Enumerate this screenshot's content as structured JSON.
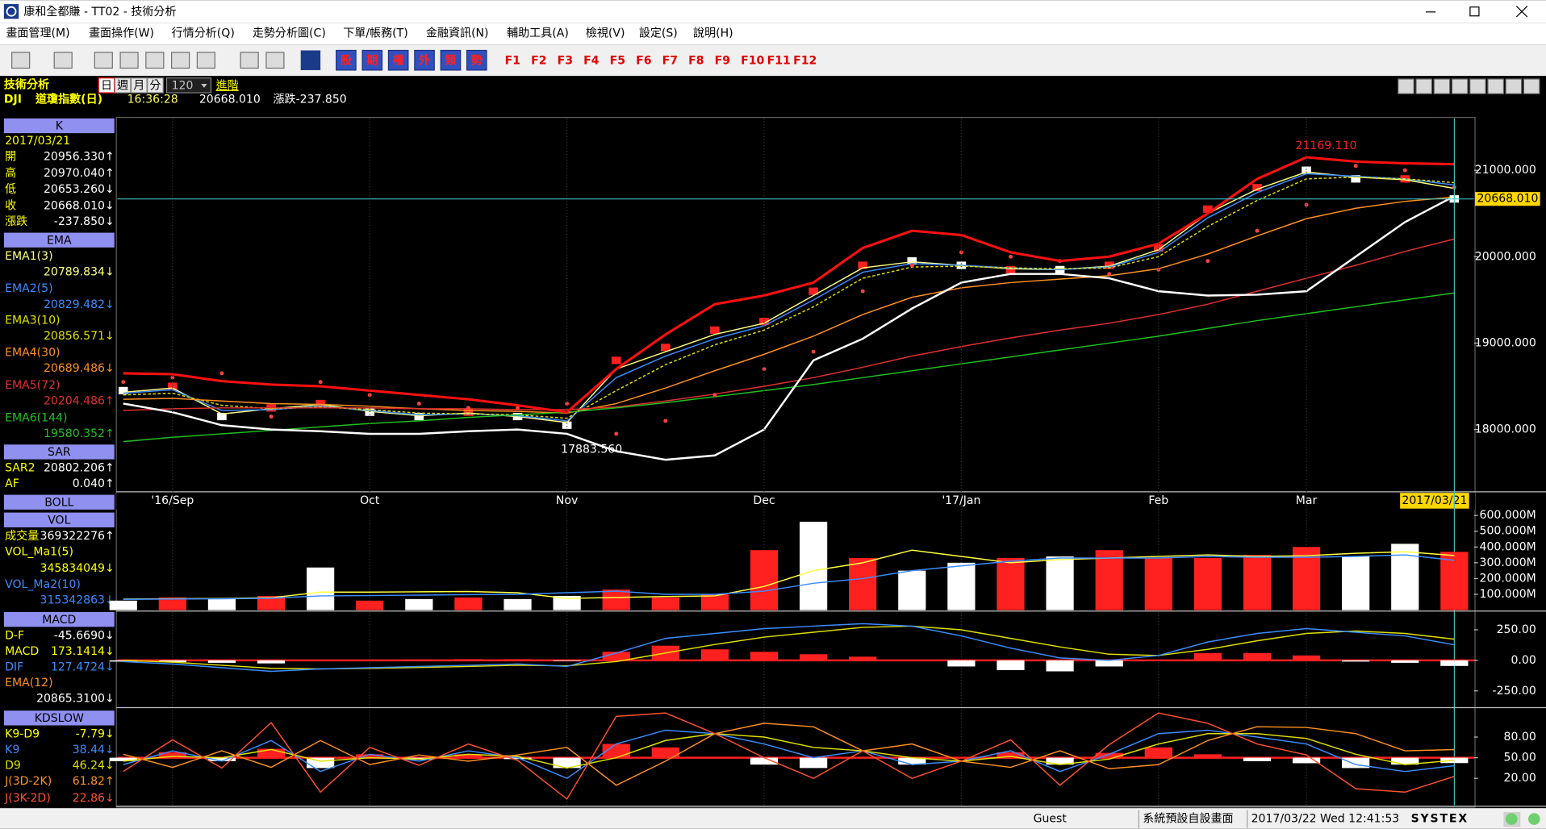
{
  "window": {
    "title": "康和全都賺 - TT02 - 技術分析",
    "menu": [
      "畫面管理(M)",
      "畫面操作(W)",
      "行情分析(Q)",
      "走勢分析圖(C)",
      "下單/帳務(T)",
      "金融資訊(N)",
      "輔助工具(A)",
      "檢視(V)",
      "設定(S)",
      "說明(H)"
    ]
  },
  "toolbar": {
    "buttons": [
      "股",
      "期",
      "權",
      "外",
      "類",
      "勢"
    ],
    "function_keys": [
      "F1",
      "F2",
      "F3",
      "F4",
      "F5",
      "F6",
      "F7",
      "F8",
      "F9",
      "F10",
      "F11",
      "F12"
    ]
  },
  "header": {
    "title": "技術分析",
    "periods": [
      "日",
      "週",
      "月",
      "分"
    ],
    "count": "120",
    "advanced": "進階",
    "symbol": "DJI",
    "name": "道瓊指數(日)",
    "time": "16:36:28",
    "price": "20668.010",
    "change": "漲跌-237.850"
  },
  "side_panel": {
    "headers": [
      "K",
      "EMA",
      "SAR",
      "VOL",
      "MACD",
      "KDSLOW"
    ],
    "date": "2017/03/21",
    "ohlc": [
      {
        "label": "開",
        "value": "20956.330↑"
      },
      {
        "label": "高",
        "value": "20970.040↑"
      },
      {
        "label": "低",
        "value": "20653.260↓"
      },
      {
        "label": "收",
        "value": "20668.010↓"
      },
      {
        "label": "漲跌",
        "value": "-237.850↓"
      }
    ],
    "ema_values": [
      "20789.834↓",
      "20829.482↓",
      "20856.571↓",
      "20689.486↓",
      "20204.486↑",
      "19580.352↑"
    ],
    "sar_value": "20802.206↑",
    "af": {
      "label": "AF",
      "value": "0.040↑"
    },
    "vol_values": [
      "369322276↑",
      "345834049↓",
      "315342863↓"
    ],
    "macd_values": [
      "-45.6690↓",
      "173.1414↓",
      "127.4724↓"
    ],
    "macd_ema": {
      "label": "EMA(12)",
      "value": "20865.3100↓"
    },
    "kd_values": [
      "-7.79↓",
      "38.44↓",
      "46.24↓",
      "61.82↑",
      "22.86↓"
    ]
  },
  "chart_data": [
    {
      "type": "line",
      "categories": [
        null,
        "'16/Sep",
        null,
        null,
        null,
        "Oct",
        null,
        null,
        null,
        "Nov",
        null,
        null,
        null,
        "Dec",
        null,
        null,
        null,
        "'17/Jan",
        null,
        null,
        null,
        "Feb",
        null,
        null,
        "Mar",
        null,
        null,
        "2017/03/21"
      ],
      "ylim": [
        17290,
        21600
      ],
      "yticks": [
        {
          "value": 18000,
          "label": "18000.000"
        },
        {
          "value": 19000,
          "label": "19000.000"
        },
        {
          "value": 20000,
          "label": "20000.000"
        },
        {
          "value": 21000,
          "label": "21000.000"
        }
      ],
      "annotations": [
        {
          "text": "21169.110",
          "value": 21169.11
        },
        {
          "text": "17883.560",
          "value": 17883.56
        }
      ],
      "cursor": {
        "value": 20668.01,
        "label": "20668.010"
      },
      "series": [
        {
          "style": "candle",
          "colors": [
            "#ffffff",
            "#ff2020",
            "#ffffff",
            "#ff2020",
            "#ff2020",
            "#ffffff",
            "#ffffff",
            "#ff2020",
            "#ffffff",
            "#ffffff",
            "#ff2020",
            "#ff2020",
            "#ff2020",
            "#ff2020",
            "#ff2020",
            "#ff2020",
            "#ffffff",
            "#ffffff",
            "#ff2020",
            "#ffffff",
            "#ff2020",
            "#ff2020",
            "#ff2020",
            "#ff2020",
            "#ffffff",
            "#ffffff",
            "#ff2020",
            "#ffffff"
          ],
          "values": [
            18450,
            18500,
            18150,
            18250,
            18300,
            18200,
            18150,
            18200,
            18150,
            18050,
            18800,
            18950,
            19150,
            19250,
            19600,
            19900,
            19950,
            19900,
            19850,
            19850,
            19900,
            20100,
            20550,
            20800,
            21000,
            20900,
            20900,
            20668.01
          ]
        },
        {
          "name": "EMA1(3)",
          "color": "#ffff80",
          "style": "line",
          "values": [
            18430,
            18480,
            18180,
            18240,
            18290,
            18210,
            18160,
            18190,
            18150,
            18080,
            18700,
            18900,
            19100,
            19230,
            19550,
            19870,
            19940,
            19900,
            19860,
            19850,
            19890,
            20080,
            20500,
            20780,
            20980,
            20920,
            20890,
            20789.834
          ]
        },
        {
          "name": "EMA2(5)",
          "color": "#3c8cff",
          "style": "line",
          "values": [
            18420,
            18460,
            18220,
            18230,
            18270,
            18220,
            18170,
            18180,
            18160,
            18100,
            18600,
            18850,
            19050,
            19200,
            19500,
            19820,
            19920,
            19900,
            19870,
            19850,
            19880,
            20050,
            20450,
            20740,
            20960,
            20930,
            20900,
            20829.482
          ]
        },
        {
          "name": "EMA3(10)",
          "color": "#e0e000",
          "style": "dash",
          "values": [
            18400,
            18420,
            18280,
            18240,
            18260,
            18230,
            18190,
            18180,
            18170,
            18130,
            18450,
            18750,
            18980,
            19150,
            19420,
            19750,
            19880,
            19890,
            19870,
            19860,
            19870,
            20000,
            20350,
            20650,
            20900,
            20920,
            20900,
            20856.571
          ]
        },
        {
          "name": "EMA4(30)",
          "color": "#ff9020",
          "style": "line",
          "values": [
            18350,
            18360,
            18330,
            18300,
            18290,
            18270,
            18240,
            18220,
            18210,
            18190,
            18300,
            18480,
            18680,
            18870,
            19080,
            19330,
            19530,
            19640,
            19700,
            19740,
            19780,
            19860,
            20030,
            20240,
            20440,
            20560,
            20640,
            20689.486
          ]
        },
        {
          "name": "EMA5(72)",
          "color": "#e03030",
          "style": "line",
          "values": [
            18220,
            18240,
            18250,
            18250,
            18250,
            18250,
            18240,
            18240,
            18230,
            18230,
            18260,
            18330,
            18410,
            18500,
            18600,
            18720,
            18850,
            18960,
            19060,
            19150,
            19230,
            19330,
            19450,
            19600,
            19750,
            19900,
            20060,
            20204.486
          ]
        },
        {
          "name": "EMA6(144)",
          "color": "#20c020",
          "style": "line",
          "values": [
            17860,
            17910,
            17950,
            17990,
            18030,
            18070,
            18100,
            18140,
            18170,
            18200,
            18250,
            18310,
            18380,
            18450,
            18520,
            18600,
            18680,
            18760,
            18840,
            18920,
            19000,
            19080,
            19170,
            19260,
            19340,
            19420,
            19500,
            19580.352
          ]
        },
        {
          "name": "SAR2",
          "color": "#ff4040",
          "style": "dots",
          "values": [
            18550,
            18600,
            18650,
            18150,
            18550,
            18400,
            18300,
            18250,
            18250,
            18300,
            17950,
            18100,
            18400,
            18700,
            18900,
            19600,
            19900,
            20050,
            20000,
            19950,
            19800,
            19850,
            19950,
            20300,
            20600,
            21050,
            21000,
            20802.206
          ]
        },
        {
          "name": "BOLL",
          "color": "#ff1010",
          "lower_color": "#ffffff",
          "style": "band",
          "values": [
            18650,
            18640,
            18560,
            18520,
            18500,
            18450,
            18400,
            18350,
            18280,
            18200,
            18700,
            19100,
            19450,
            19550,
            19700,
            20100,
            20300,
            20250,
            20050,
            19950,
            20000,
            20150,
            20500,
            20900,
            21150,
            21100,
            21080,
            21070
          ],
          "lower_values": [
            18300,
            18200,
            18050,
            18000,
            17980,
            17950,
            17950,
            17980,
            18000,
            17950,
            17750,
            17650,
            17700,
            18000,
            18800,
            19050,
            19400,
            19700,
            19800,
            19800,
            19750,
            19600,
            19550,
            19560,
            19600,
            20000,
            20400,
            20700
          ]
        }
      ]
    },
    {
      "type": "bar",
      "ylim": [
        0,
        612
      ],
      "yticks": [
        {
          "value": 100,
          "label": "100.000M"
        },
        {
          "value": 200,
          "label": "200.000M"
        },
        {
          "value": 300,
          "label": "300.000M"
        },
        {
          "value": 400,
          "label": "400.000M"
        },
        {
          "value": 500,
          "label": "500.000M"
        },
        {
          "value": 600,
          "label": "600.000M"
        }
      ],
      "series": [
        {
          "name": "成交量",
          "style": "bar",
          "colors": [
            "#ffffff",
            "#ff2020",
            "#ffffff",
            "#ff2020",
            "#ffffff",
            "#ff2020",
            "#ffffff",
            "#ff2020",
            "#ffffff",
            "#ffffff",
            "#ff2020",
            "#ff2020",
            "#ff2020",
            "#ff2020",
            "#ffffff",
            "#ff2020",
            "#ffffff",
            "#ffffff",
            "#ff2020",
            "#ffffff",
            "#ff2020",
            "#ff2020",
            "#ff2020",
            "#ff2020",
            "#ff2020",
            "#ffffff",
            "#ffffff",
            "#ff2020"
          ],
          "values": [
            60,
            80,
            70,
            90,
            270,
            60,
            70,
            80,
            70,
            90,
            130,
            80,
            100,
            380,
            560,
            330,
            250,
            300,
            330,
            340,
            380,
            330,
            330,
            350,
            400,
            340,
            420,
            369.322276
          ]
        },
        {
          "name": "VOL_Ma1(5)",
          "color": "#ffff40",
          "style": "line",
          "values": [
            70,
            72,
            74,
            78,
            114,
            114,
            116,
            118,
            110,
            74,
            80,
            86,
            90,
            150,
            250,
            300,
            380,
            340,
            300,
            320,
            330,
            340,
            350,
            340,
            345,
            360,
            370,
            345.834049
          ]
        },
        {
          "name": "VOL_Ma2(10)",
          "color": "#3c8cff",
          "style": "line",
          "values": [
            68,
            70,
            72,
            75,
            90,
            92,
            95,
            98,
            100,
            110,
            120,
            100,
            100,
            120,
            170,
            200,
            250,
            280,
            310,
            330,
            330,
            330,
            340,
            335,
            335,
            340,
            350,
            315.342863
          ]
        }
      ]
    },
    {
      "type": "bar",
      "ylim": [
        -379,
        387
      ],
      "baseline": 0,
      "yticks": [
        {
          "value": -250,
          "label": "-250.00"
        },
        {
          "value": 0,
          "label": "0.00"
        },
        {
          "value": 250,
          "label": "250.00"
        }
      ],
      "series": [
        {
          "name": "D-F",
          "style": "bar",
          "color": "#ff2020",
          "negative_color": "#ffffff",
          "values": [
            -10,
            -15,
            -20,
            -25,
            0,
            5,
            8,
            10,
            10,
            -5,
            70,
            120,
            90,
            70,
            50,
            30,
            0,
            -50,
            -80,
            -90,
            -50,
            0,
            60,
            60,
            40,
            -10,
            -20,
            -45.669
          ]
        },
        {
          "name": "MACD",
          "color": "#e0e000",
          "style": "line",
          "values": [
            0,
            -15,
            -40,
            -65,
            -70,
            -65,
            -58,
            -50,
            -40,
            -45,
            -10,
            60,
            130,
            190,
            230,
            270,
            280,
            250,
            180,
            110,
            50,
            40,
            90,
            160,
            220,
            240,
            220,
            173.1414
          ]
        },
        {
          "name": "DIF",
          "color": "#3c8cff",
          "style": "line",
          "values": [
            -10,
            -30,
            -60,
            -90,
            -70,
            -60,
            -50,
            -40,
            -30,
            -50,
            60,
            180,
            220,
            260,
            280,
            300,
            280,
            200,
            100,
            20,
            0,
            40,
            150,
            220,
            260,
            230,
            200,
            127.4724
          ]
        }
      ]
    },
    {
      "type": "line",
      "ylim": [
        -19,
        117
      ],
      "baseline": 50,
      "yticks": [
        {
          "value": 20,
          "label": "20.00"
        },
        {
          "value": 50,
          "label": "50.00"
        },
        {
          "value": 80,
          "label": "80.00"
        }
      ],
      "series": [
        {
          "name": "K9-D9",
          "style": "bar",
          "color": "#ff2020",
          "negative_color": "#ffffff",
          "values": [
            -5,
            8,
            -5,
            13,
            -15,
            5,
            -3,
            5,
            -2,
            -15,
            20,
            15,
            0,
            -10,
            -15,
            0,
            -10,
            0,
            8,
            -10,
            7,
            15,
            5,
            -5,
            -8,
            -15,
            -10,
            -7.79
          ]
        },
        {
          "name": "K9",
          "color": "#3c8cff",
          "style": "line",
          "values": [
            40,
            60,
            45,
            75,
            30,
            55,
            45,
            60,
            50,
            20,
            70,
            90,
            85,
            70,
            50,
            60,
            40,
            45,
            60,
            30,
            55,
            85,
            90,
            80,
            70,
            40,
            30,
            38.44
          ]
        },
        {
          "name": "D9",
          "color": "#e0e000",
          "style": "line",
          "values": [
            45,
            52,
            50,
            62,
            45,
            50,
            48,
            55,
            52,
            35,
            50,
            75,
            85,
            80,
            65,
            60,
            50,
            45,
            52,
            40,
            48,
            70,
            85,
            85,
            78,
            55,
            40,
            46.24
          ]
        },
        {
          "name": "J(3D-2K)",
          "color": "#ff9020",
          "style": "line",
          "values": [
            55,
            36,
            60,
            36,
            75,
            40,
            54,
            45,
            54,
            65,
            10,
            45,
            85,
            100,
            95,
            60,
            70,
            45,
            36,
            60,
            34,
            40,
            75,
            95,
            94,
            85,
            60,
            61.82
          ]
        },
        {
          "name": "J(3K-2D)",
          "color": "#ff5030",
          "style": "line",
          "values": [
            30,
            76,
            35,
            101,
            0,
            65,
            39,
            70,
            46,
            -10,
            110,
            115,
            85,
            50,
            20,
            60,
            20,
            45,
            76,
            10,
            69,
            115,
            100,
            70,
            54,
            5,
            0,
            22.86
          ]
        }
      ]
    }
  ],
  "status_bar": {
    "user": "Guest",
    "layout": "系統預設自設畫面",
    "datetime": "2017/03/22 Wed 12:41:53",
    "brand": "SYSTEX"
  }
}
